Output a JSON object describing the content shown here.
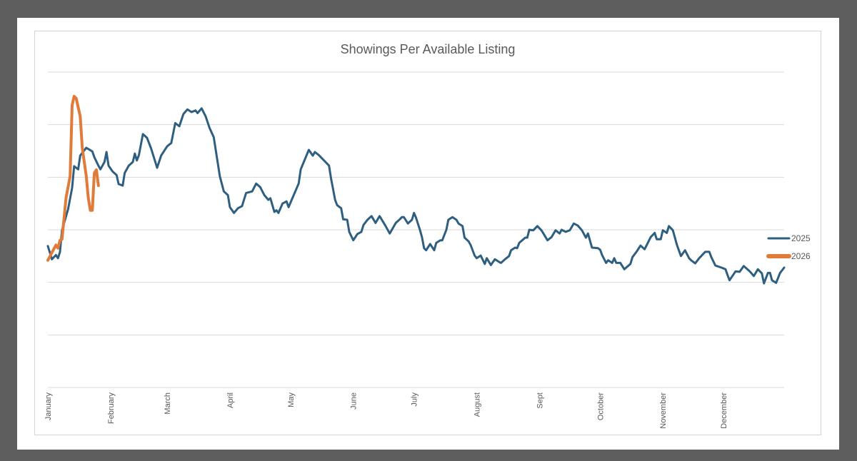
{
  "chart_data": {
    "type": "line",
    "title": "Showings Per Available Listing",
    "xlabel": "",
    "ylabel": "",
    "x_tick_labels": [
      "January",
      "February",
      "March",
      "April",
      "May",
      "June",
      "July",
      "August",
      "Sept",
      "October",
      "November",
      "December"
    ],
    "y_tick_labels": [],
    "ylim": [
      0,
      6
    ],
    "grid": "horizontal",
    "legend_position": "right",
    "series": [
      {
        "name": "2025",
        "color": "#2e5f80",
        "points": [
          [
            "01-01",
            2.69
          ],
          [
            "01-03",
            2.44
          ],
          [
            "01-05",
            2.52
          ],
          [
            "01-06",
            2.46
          ],
          [
            "01-07",
            2.58
          ],
          [
            "01-08",
            2.99
          ],
          [
            "01-11",
            3.39
          ],
          [
            "01-13",
            3.8
          ],
          [
            "01-14",
            4.21
          ],
          [
            "01-16",
            4.15
          ],
          [
            "01-17",
            4.41
          ],
          [
            "01-20",
            4.56
          ],
          [
            "01-23",
            4.49
          ],
          [
            "01-24",
            4.38
          ],
          [
            "01-26",
            4.22
          ],
          [
            "01-27",
            4.15
          ],
          [
            "01-29",
            4.29
          ],
          [
            "01-30",
            4.48
          ],
          [
            "01-31",
            4.22
          ],
          [
            "02-02",
            4.11
          ],
          [
            "02-04",
            4.04
          ],
          [
            "02-05",
            3.87
          ],
          [
            "02-07",
            3.84
          ],
          [
            "02-08",
            4.08
          ],
          [
            "02-10",
            4.22
          ],
          [
            "02-12",
            4.29
          ],
          [
            "02-13",
            4.45
          ],
          [
            "02-14",
            4.32
          ],
          [
            "02-15",
            4.42
          ],
          [
            "02-17",
            4.82
          ],
          [
            "02-19",
            4.75
          ],
          [
            "02-21",
            4.55
          ],
          [
            "02-24",
            4.18
          ],
          [
            "02-26",
            4.41
          ],
          [
            "03-01",
            4.59
          ],
          [
            "03-03",
            4.65
          ],
          [
            "03-05",
            5.03
          ],
          [
            "03-07",
            4.97
          ],
          [
            "03-09",
            5.2
          ],
          [
            "03-11",
            5.29
          ],
          [
            "03-13",
            5.24
          ],
          [
            "03-15",
            5.27
          ],
          [
            "03-16",
            5.22
          ],
          [
            "03-18",
            5.31
          ],
          [
            "03-20",
            5.16
          ],
          [
            "03-22",
            4.93
          ],
          [
            "03-24",
            4.76
          ],
          [
            "03-27",
            4.02
          ],
          [
            "03-29",
            3.73
          ],
          [
            "03-31",
            3.66
          ],
          [
            "04-01",
            3.43
          ],
          [
            "04-03",
            3.32
          ],
          [
            "04-05",
            3.41
          ],
          [
            "04-07",
            3.45
          ],
          [
            "04-09",
            3.7
          ],
          [
            "04-12",
            3.73
          ],
          [
            "04-14",
            3.88
          ],
          [
            "04-16",
            3.81
          ],
          [
            "04-18",
            3.66
          ],
          [
            "04-20",
            3.57
          ],
          [
            "04-21",
            3.6
          ],
          [
            "04-23",
            3.34
          ],
          [
            "04-24",
            3.37
          ],
          [
            "04-25",
            3.32
          ],
          [
            "04-27",
            3.5
          ],
          [
            "04-29",
            3.54
          ],
          [
            "04-30",
            3.43
          ],
          [
            "05-02",
            3.61
          ],
          [
            "05-05",
            3.88
          ],
          [
            "05-06",
            4.15
          ],
          [
            "05-10",
            4.52
          ],
          [
            "05-12",
            4.41
          ],
          [
            "05-13",
            4.48
          ],
          [
            "05-15",
            4.42
          ],
          [
            "05-17",
            4.34
          ],
          [
            "05-20",
            4.22
          ],
          [
            "05-21",
            3.98
          ],
          [
            "05-23",
            3.57
          ],
          [
            "05-24",
            3.47
          ],
          [
            "05-26",
            3.41
          ],
          [
            "05-27",
            3.2
          ],
          [
            "05-29",
            3.19
          ],
          [
            "05-30",
            2.96
          ],
          [
            "06-01",
            2.8
          ],
          [
            "06-03",
            2.92
          ],
          [
            "06-05",
            2.96
          ],
          [
            "06-06",
            3.09
          ],
          [
            "06-08",
            3.19
          ],
          [
            "06-10",
            3.26
          ],
          [
            "06-12",
            3.13
          ],
          [
            "06-14",
            3.26
          ],
          [
            "06-17",
            3.07
          ],
          [
            "06-19",
            2.93
          ],
          [
            "06-22",
            3.13
          ],
          [
            "06-24",
            3.2
          ],
          [
            "06-25",
            3.24
          ],
          [
            "06-26",
            3.24
          ],
          [
            "06-28",
            3.12
          ],
          [
            "06-30",
            3.19
          ],
          [
            "07-01",
            3.32
          ],
          [
            "07-02",
            3.23
          ],
          [
            "07-04",
            2.99
          ],
          [
            "07-05",
            2.85
          ],
          [
            "07-06",
            2.65
          ],
          [
            "07-07",
            2.61
          ],
          [
            "07-09",
            2.73
          ],
          [
            "07-11",
            2.61
          ],
          [
            "07-12",
            2.75
          ],
          [
            "07-14",
            2.8
          ],
          [
            "07-15",
            2.8
          ],
          [
            "07-17",
            3.0
          ],
          [
            "07-18",
            3.19
          ],
          [
            "07-20",
            3.24
          ],
          [
            "07-22",
            3.19
          ],
          [
            "07-23",
            3.12
          ],
          [
            "07-25",
            3.07
          ],
          [
            "07-26",
            2.85
          ],
          [
            "07-28",
            2.78
          ],
          [
            "07-29",
            2.71
          ],
          [
            "07-31",
            2.51
          ],
          [
            "08-01",
            2.46
          ],
          [
            "08-03",
            2.51
          ],
          [
            "08-05",
            2.35
          ],
          [
            "08-06",
            2.46
          ],
          [
            "08-08",
            2.33
          ],
          [
            "08-10",
            2.44
          ],
          [
            "08-12",
            2.39
          ],
          [
            "08-13",
            2.37
          ],
          [
            "08-15",
            2.44
          ],
          [
            "08-17",
            2.5
          ],
          [
            "08-18",
            2.61
          ],
          [
            "08-20",
            2.66
          ],
          [
            "08-21",
            2.65
          ],
          [
            "08-22",
            2.75
          ],
          [
            "08-25",
            2.85
          ],
          [
            "08-26",
            2.85
          ],
          [
            "08-27",
            3.0
          ],
          [
            "08-29",
            2.99
          ],
          [
            "08-31",
            3.07
          ],
          [
            "09-02",
            2.99
          ],
          [
            "09-03",
            2.93
          ],
          [
            "09-05",
            2.8
          ],
          [
            "09-07",
            2.86
          ],
          [
            "09-09",
            2.99
          ],
          [
            "09-11",
            2.93
          ],
          [
            "09-12",
            3.0
          ],
          [
            "09-14",
            2.96
          ],
          [
            "09-16",
            2.99
          ],
          [
            "09-18",
            3.12
          ],
          [
            "09-20",
            3.08
          ],
          [
            "09-22",
            2.99
          ],
          [
            "09-24",
            2.85
          ],
          [
            "09-25",
            2.93
          ],
          [
            "09-27",
            2.66
          ],
          [
            "09-30",
            2.65
          ],
          [
            "10-01",
            2.62
          ],
          [
            "10-02",
            2.52
          ],
          [
            "10-04",
            2.37
          ],
          [
            "10-05",
            2.42
          ],
          [
            "10-07",
            2.37
          ],
          [
            "10-08",
            2.46
          ],
          [
            "10-09",
            2.37
          ],
          [
            "10-11",
            2.37
          ],
          [
            "10-13",
            2.25
          ],
          [
            "10-16",
            2.35
          ],
          [
            "10-17",
            2.48
          ],
          [
            "10-19",
            2.58
          ],
          [
            "10-21",
            2.7
          ],
          [
            "10-23",
            2.63
          ],
          [
            "10-26",
            2.86
          ],
          [
            "10-28",
            2.94
          ],
          [
            "10-29",
            2.82
          ],
          [
            "10-31",
            2.82
          ],
          [
            "11-01",
            2.99
          ],
          [
            "11-03",
            2.94
          ],
          [
            "11-04",
            3.07
          ],
          [
            "11-06",
            2.99
          ],
          [
            "11-08",
            2.71
          ],
          [
            "11-10",
            2.5
          ],
          [
            "11-12",
            2.61
          ],
          [
            "11-14",
            2.46
          ],
          [
            "11-15",
            2.42
          ],
          [
            "11-17",
            2.36
          ],
          [
            "11-19",
            2.46
          ],
          [
            "11-22",
            2.58
          ],
          [
            "11-24",
            2.58
          ],
          [
            "11-25",
            2.48
          ],
          [
            "11-27",
            2.32
          ],
          [
            "11-30",
            2.28
          ],
          [
            "12-02",
            2.25
          ],
          [
            "12-03",
            2.14
          ],
          [
            "12-04",
            2.04
          ],
          [
            "12-07",
            2.21
          ],
          [
            "12-09",
            2.2
          ],
          [
            "12-11",
            2.31
          ],
          [
            "12-14",
            2.21
          ],
          [
            "12-16",
            2.12
          ],
          [
            "12-18",
            2.25
          ],
          [
            "12-20",
            2.17
          ],
          [
            "12-21",
            1.98
          ],
          [
            "12-23",
            2.18
          ],
          [
            "12-24",
            2.18
          ],
          [
            "12-25",
            2.04
          ],
          [
            "12-27",
            1.99
          ],
          [
            "12-29",
            2.18
          ],
          [
            "12-31",
            2.28
          ]
        ]
      },
      {
        "name": "2026",
        "color": "#e07b39",
        "points": [
          [
            "01-01",
            2.42
          ],
          [
            "01-05",
            2.71
          ],
          [
            "01-06",
            2.65
          ],
          [
            "01-07",
            2.8
          ],
          [
            "01-08",
            2.82
          ],
          [
            "01-10",
            3.61
          ],
          [
            "01-12",
            4.02
          ],
          [
            "01-13",
            5.37
          ],
          [
            "01-14",
            5.54
          ],
          [
            "01-15",
            5.5
          ],
          [
            "01-17",
            5.16
          ],
          [
            "01-18",
            4.56
          ],
          [
            "01-20",
            4.02
          ],
          [
            "01-21",
            3.61
          ],
          [
            "01-22",
            3.37
          ],
          [
            "01-23",
            3.37
          ],
          [
            "01-24",
            4.08
          ],
          [
            "01-25",
            4.14
          ],
          [
            "01-26",
            3.84
          ]
        ]
      }
    ]
  }
}
